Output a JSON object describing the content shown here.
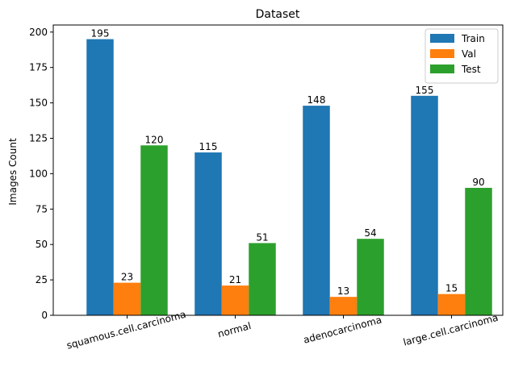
{
  "chart_data": {
    "type": "bar",
    "title": "Dataset",
    "xlabel": "",
    "ylabel": "Images Count",
    "categories": [
      "squamous.cell.carcinoma",
      "normal",
      "adenocarcinoma",
      "large.cell.carcinoma"
    ],
    "series": [
      {
        "name": "Train",
        "values": [
          195,
          115,
          148,
          155
        ],
        "color": "#1f77b4"
      },
      {
        "name": "Val",
        "values": [
          23,
          21,
          13,
          15
        ],
        "color": "#ff7f0e"
      },
      {
        "name": "Test",
        "values": [
          120,
          51,
          54,
          90
        ],
        "color": "#2ca02c"
      }
    ],
    "ylim": [
      0,
      205
    ],
    "yticks": [
      0,
      25,
      50,
      75,
      100,
      125,
      150,
      175,
      200
    ],
    "grid": false,
    "legend_position": "top-right"
  }
}
